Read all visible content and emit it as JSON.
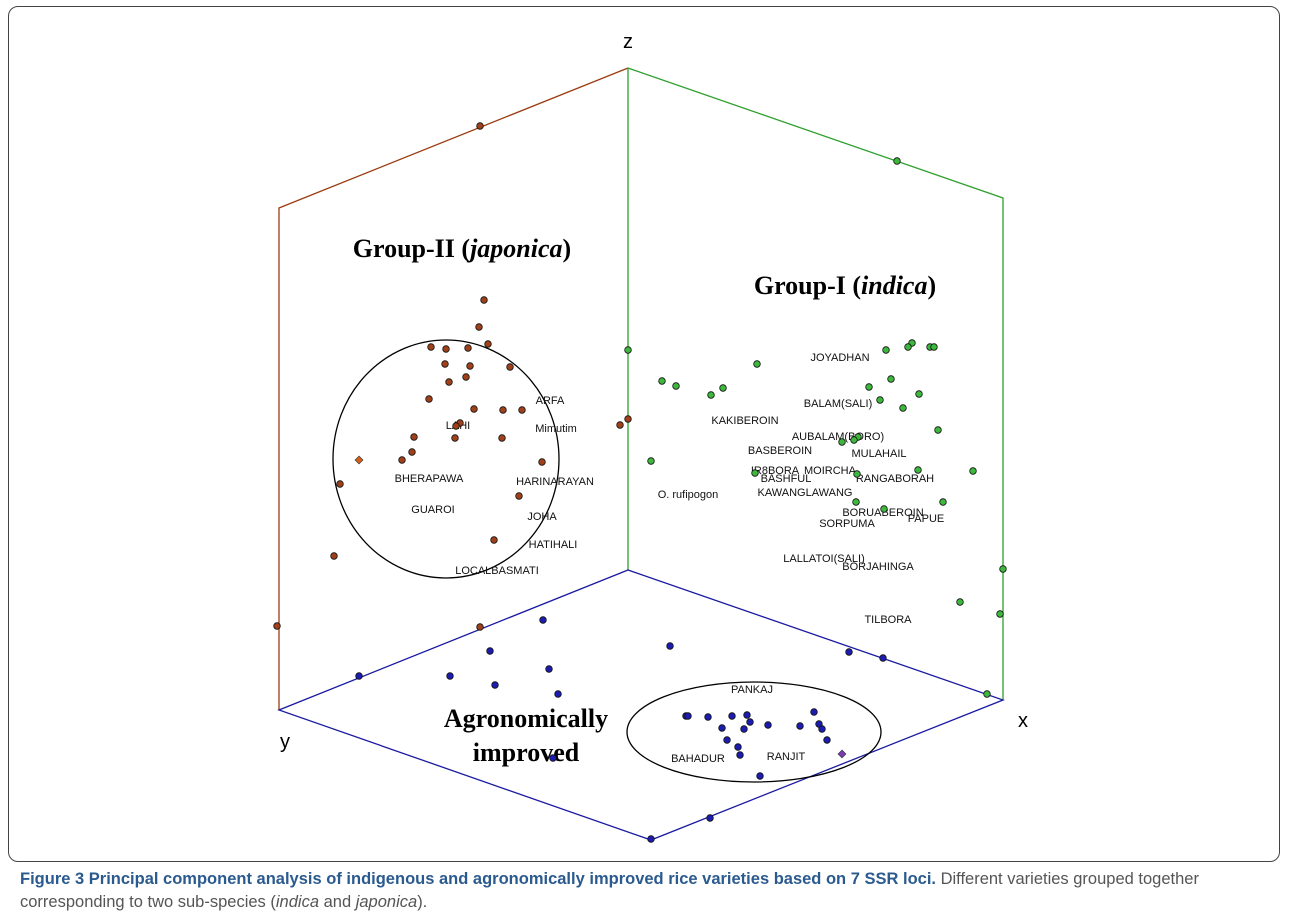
{
  "axes": {
    "x": "x",
    "y": "y",
    "z": "z"
  },
  "groups": {
    "japonica": [
      "Group-II (",
      "japonica",
      ")"
    ],
    "indica": [
      "Group-I (",
      "indica",
      ")"
    ],
    "improved": [
      "Agronomically",
      "improved"
    ]
  },
  "varieties": [
    "ARFA",
    "LAHI",
    "Mimutim",
    "BHERAPAWA",
    "HARINARAYAN",
    "GUAROI",
    "JOHA",
    "HATIHALI",
    "LOCALBASMATI",
    "JOYADHAN",
    "BALAM(SALI)",
    "KAKIBEROIN",
    "AUBALAM(BORO)",
    "BASBEROIN",
    "MULAHAIL",
    "IR8BORA",
    "MOIRCHA",
    "BASHFUL",
    "RANGABORAH",
    "KAWANGLAWANG",
    "O. rufipogon",
    "BORUABEROIN",
    "PAPUE",
    "SORPUMA",
    "LALLATOI(SALI)",
    "BORJAHINGA",
    "TILBORA",
    "PANKAJ",
    "BAHADUR",
    "RANJIT"
  ],
  "caption": {
    "title": "Figure 3 Principal component analysis of indigenous and agronomically improved rice varieties based on 7 SSR loci.",
    "text": [
      " Different varieties grouped together corresponding to two sub-species (",
      "indica",
      " and ",
      "japonica",
      ")."
    ]
  }
}
